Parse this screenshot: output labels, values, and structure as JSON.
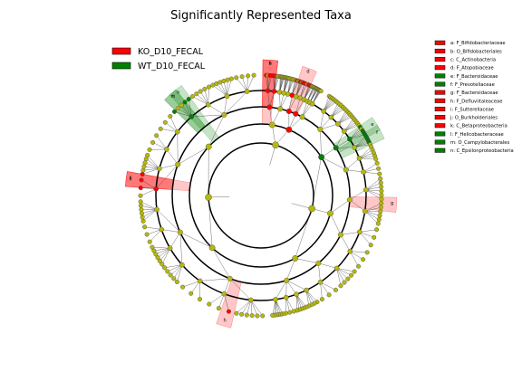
{
  "chart_data": {
    "type": "cladogram",
    "title": "Significantly Represented Taxa",
    "legend": {
      "placement": "top-left",
      "items": [
        {
          "label": "KO_D10_FECAL",
          "color": "#ff0000"
        },
        {
          "label": "WT_D10_FECAL",
          "color": "#008000"
        }
      ]
    },
    "key": {
      "placement": "top-right",
      "items": [
        {
          "letter": "a",
          "text": "a: F_Bifidobacteriaceae",
          "group": "KO_D10_FECAL"
        },
        {
          "letter": "b",
          "text": "b: O_Bifidobacteriales",
          "group": "KO_D10_FECAL"
        },
        {
          "letter": "c",
          "text": "c: C_Actinobacteria",
          "group": "KO_D10_FECAL"
        },
        {
          "letter": "d",
          "text": "d: F_Atopobiaceae",
          "group": "KO_D10_FECAL"
        },
        {
          "letter": "e",
          "text": "e: F_Bacteroidaceae",
          "group": "WT_D10_FECAL"
        },
        {
          "letter": "f",
          "text": "f: F_Prevotellaceae",
          "group": "WT_D10_FECAL"
        },
        {
          "letter": "g",
          "text": "g: F_Bacteroidaceae",
          "group": "KO_D10_FECAL"
        },
        {
          "letter": "h",
          "text": "h: F_Defluviitaleaceae",
          "group": "KO_D10_FECAL"
        },
        {
          "letter": "i",
          "text": "i: F_Sutterellaceae",
          "group": "KO_D10_FECAL"
        },
        {
          "letter": "j",
          "text": "j: O_Burkholderiales",
          "group": "KO_D10_FECAL"
        },
        {
          "letter": "k",
          "text": "k: C_Betaproteobacteria",
          "group": "KO_D10_FECAL"
        },
        {
          "letter": "l",
          "text": "l: F_Helicobacteraceae",
          "group": "WT_D10_FECAL"
        },
        {
          "letter": "m",
          "text": "m: O_Campylobacterales",
          "group": "WT_D10_FECAL"
        },
        {
          "letter": "n",
          "text": "n: C_Epsilonproteobacteria",
          "group": "WT_D10_FECAL"
        }
      ]
    },
    "rings": 5,
    "node_colors": {
      "neutral": "#b5b80f",
      "KO_D10_FECAL": "#ff0000",
      "WT_D10_FECAL": "#008000"
    },
    "highlighted_clades": [
      {
        "letter": "a",
        "group": "KO_D10_FECAL",
        "angle_deg": 4
      },
      {
        "letter": "b",
        "group": "KO_D10_FECAL",
        "angle_deg": 4
      },
      {
        "letter": "c",
        "group": "KO_D10_FECAL",
        "angle_deg": 4
      },
      {
        "letter": "d",
        "group": "KO_D10_FECAL",
        "angle_deg": 21
      },
      {
        "letter": "e",
        "group": "WT_D10_FECAL",
        "angle_deg": 58
      },
      {
        "letter": "f",
        "group": "WT_D10_FECAL",
        "angle_deg": 62
      },
      {
        "letter": "g",
        "group": "KO_D10_FECAL",
        "angle_deg": 94
      },
      {
        "letter": "h",
        "group": "KO_D10_FECAL",
        "angle_deg": 196
      },
      {
        "letter": "i",
        "group": "KO_D10_FECAL",
        "angle_deg": 277
      },
      {
        "letter": "j",
        "group": "KO_D10_FECAL",
        "angle_deg": 277
      },
      {
        "letter": "k",
        "group": "KO_D10_FECAL",
        "angle_deg": 277
      },
      {
        "letter": "l",
        "group": "WT_D10_FECAL",
        "angle_deg": 318
      },
      {
        "letter": "m",
        "group": "WT_D10_FECAL",
        "angle_deg": 318
      },
      {
        "letter": "n",
        "group": "WT_D10_FECAL",
        "angle_deg": 321
      }
    ]
  }
}
